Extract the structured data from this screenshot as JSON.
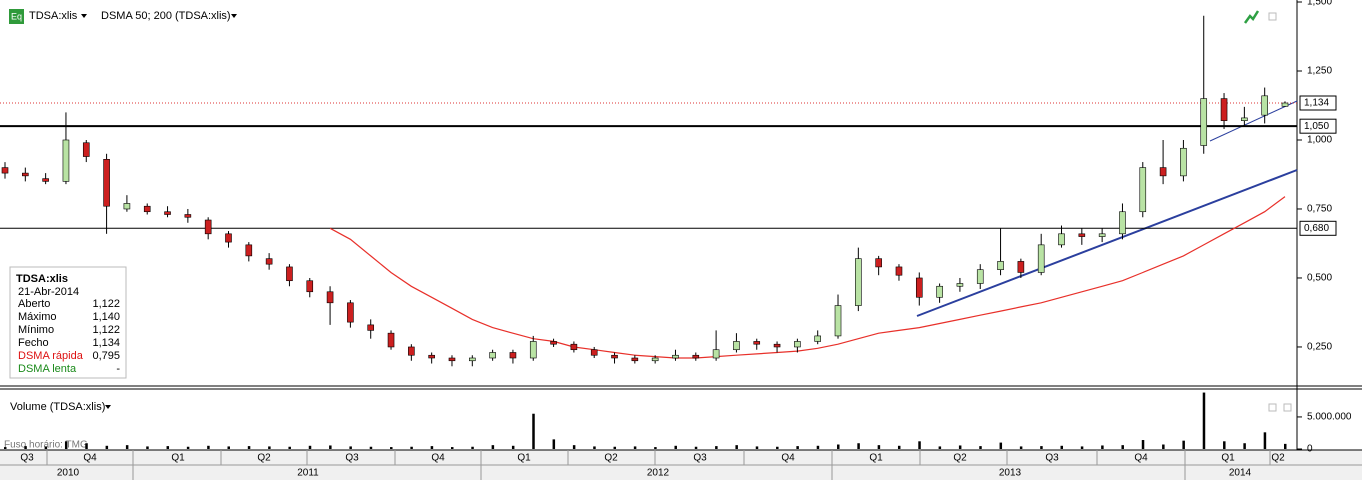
{
  "header": {
    "symbol": "TDSA:xlis",
    "indicator": "DSMA 50; 200 (TDSA:xlis)",
    "volume_title": "Volume (TDSA:xlis)",
    "timezone": "Fuso horário: TMG"
  },
  "info_box": {
    "title": "TDSA:xlis",
    "date": "21-Abr-2014",
    "rows": [
      {
        "label": "Aberto",
        "value": "1,122"
      },
      {
        "label": "Máximo",
        "value": "1,140"
      },
      {
        "label": "Mínimo",
        "value": "1,122"
      },
      {
        "label": "Fecho",
        "value": "1,134"
      },
      {
        "label": "DSMA rápida",
        "value": "0,795"
      },
      {
        "label": "DSMA lenta",
        "value": "-"
      }
    ]
  },
  "time_axis": {
    "quarters": [
      "Q3",
      "Q4",
      "Q1",
      "Q2",
      "Q3",
      "Q4",
      "Q1",
      "Q2",
      "Q3",
      "Q4",
      "Q1",
      "Q2",
      "Q3",
      "Q4",
      "Q1",
      "Q2"
    ],
    "years": [
      "2010",
      "2011",
      "2012",
      "2013",
      "2014"
    ]
  },
  "chart_data": [
    {
      "type": "candlestick",
      "categories": [
        null,
        null,
        null,
        null,
        null,
        null,
        null,
        null,
        null,
        null,
        null,
        null,
        null,
        null,
        null,
        null,
        null,
        null,
        null,
        null,
        null,
        null,
        null,
        null,
        null,
        null,
        null,
        null,
        null,
        null,
        null,
        null,
        null,
        null,
        null,
        null,
        null,
        null,
        null,
        null,
        null,
        null,
        null,
        null,
        null,
        null,
        null,
        null,
        null,
        null,
        null,
        null,
        null,
        null,
        null,
        null,
        null,
        null,
        null,
        null,
        null,
        null,
        null,
        null
      ],
      "open": [
        0.9,
        0.88,
        0.86,
        0.85,
        0.99,
        0.93,
        0.75,
        0.76,
        0.74,
        0.73,
        0.71,
        0.66,
        0.62,
        0.57,
        0.54,
        0.49,
        0.45,
        0.41,
        0.33,
        0.3,
        0.25,
        0.22,
        0.21,
        0.2,
        0.21,
        0.23,
        0.21,
        0.27,
        0.26,
        0.24,
        0.22,
        0.21,
        0.2,
        0.21,
        0.22,
        0.21,
        0.24,
        0.27,
        0.26,
        0.25,
        0.27,
        0.29,
        0.4,
        0.57,
        0.54,
        0.5,
        0.43,
        0.47,
        0.48,
        0.53,
        0.56,
        0.52,
        0.62,
        0.66,
        0.65,
        0.66,
        0.74,
        0.9,
        0.87,
        0.98,
        1.15,
        1.07,
        1.09,
        1.122
      ],
      "high": [
        0.92,
        0.9,
        0.88,
        1.1,
        1.0,
        0.95,
        0.8,
        0.77,
        0.76,
        0.75,
        0.72,
        0.67,
        0.63,
        0.59,
        0.55,
        0.5,
        0.47,
        0.42,
        0.35,
        0.31,
        0.26,
        0.23,
        0.22,
        0.22,
        0.24,
        0.24,
        0.29,
        0.28,
        0.27,
        0.25,
        0.23,
        0.22,
        0.22,
        0.24,
        0.23,
        0.31,
        0.3,
        0.28,
        0.27,
        0.28,
        0.31,
        0.44,
        0.61,
        0.58,
        0.55,
        0.52,
        0.48,
        0.5,
        0.55,
        0.68,
        0.57,
        0.66,
        0.69,
        0.68,
        0.68,
        0.77,
        0.92,
        1.0,
        1.0,
        1.45,
        1.17,
        1.12,
        1.19,
        1.14
      ],
      "low": [
        0.86,
        0.85,
        0.84,
        0.84,
        0.92,
        0.66,
        0.74,
        0.73,
        0.72,
        0.7,
        0.64,
        0.61,
        0.56,
        0.53,
        0.47,
        0.43,
        0.33,
        0.32,
        0.28,
        0.24,
        0.2,
        0.19,
        0.18,
        0.18,
        0.2,
        0.19,
        0.2,
        0.25,
        0.23,
        0.21,
        0.19,
        0.19,
        0.19,
        0.2,
        0.2,
        0.2,
        0.23,
        0.24,
        0.23,
        0.23,
        0.26,
        0.28,
        0.38,
        0.51,
        0.49,
        0.4,
        0.41,
        0.45,
        0.46,
        0.51,
        0.5,
        0.51,
        0.61,
        0.62,
        0.63,
        0.64,
        0.72,
        0.84,
        0.85,
        0.95,
        1.04,
        1.05,
        1.06,
        1.122
      ],
      "close": [
        0.88,
        0.87,
        0.85,
        1.0,
        0.94,
        0.76,
        0.77,
        0.74,
        0.73,
        0.72,
        0.66,
        0.63,
        0.58,
        0.55,
        0.49,
        0.45,
        0.41,
        0.34,
        0.31,
        0.25,
        0.22,
        0.21,
        0.2,
        0.21,
        0.23,
        0.21,
        0.27,
        0.26,
        0.24,
        0.22,
        0.21,
        0.2,
        0.21,
        0.22,
        0.21,
        0.24,
        0.27,
        0.26,
        0.25,
        0.27,
        0.29,
        0.4,
        0.57,
        0.54,
        0.51,
        0.43,
        0.47,
        0.48,
        0.53,
        0.56,
        0.52,
        0.62,
        0.66,
        0.65,
        0.66,
        0.74,
        0.9,
        0.87,
        0.97,
        1.15,
        1.07,
        1.08,
        1.16,
        1.134
      ],
      "up_color": "#b9e3a4",
      "down_color": "#cc1f1f",
      "series": [
        {
          "name": "DSMA rápida",
          "color": "#e8302a",
          "values": [
            null,
            null,
            null,
            null,
            null,
            null,
            null,
            null,
            null,
            null,
            null,
            null,
            null,
            null,
            null,
            null,
            0.68,
            0.64,
            0.58,
            0.52,
            0.47,
            0.43,
            0.39,
            0.35,
            0.32,
            0.3,
            0.28,
            0.27,
            0.25,
            0.24,
            0.23,
            0.22,
            0.215,
            0.21,
            0.21,
            0.215,
            0.22,
            0.225,
            0.23,
            0.235,
            0.245,
            0.26,
            0.28,
            0.3,
            0.31,
            0.32,
            0.335,
            0.35,
            0.365,
            0.38,
            0.395,
            0.41,
            0.43,
            0.45,
            0.47,
            0.49,
            0.52,
            0.55,
            0.58,
            0.62,
            0.66,
            0.7,
            0.74,
            0.795
          ]
        }
      ],
      "levels": [
        {
          "value": 1.05,
          "label": "1,050"
        },
        {
          "value": 0.68,
          "label": "0,680"
        }
      ],
      "last_price": {
        "value": 1.134,
        "label": "1,134"
      },
      "ylim": [
        0.11,
        1.5
      ],
      "yticks": [
        {
          "value": 0.25,
          "label": "0,250"
        },
        {
          "value": 0.5,
          "label": "0,500"
        },
        {
          "value": 0.75,
          "label": "0,750"
        },
        {
          "value": 1.0,
          "label": "1,000"
        },
        {
          "value": 1.25,
          "label": "1,250"
        },
        {
          "value": 1.5,
          "label": "1,500"
        }
      ]
    },
    {
      "type": "bar",
      "color": "#000000",
      "values": [
        300000,
        450000,
        400000,
        1200000,
        900000,
        500000,
        600000,
        400000,
        450000,
        350000,
        500000,
        400000,
        450000,
        400000,
        350000,
        500000,
        550000,
        400000,
        350000,
        300000,
        350000,
        450000,
        300000,
        350000,
        600000,
        500000,
        5500000,
        1500000,
        600000,
        400000,
        350000,
        400000,
        300000,
        500000,
        350000,
        450000,
        600000,
        400000,
        350000,
        450000,
        500000,
        700000,
        900000,
        600000,
        500000,
        1200000,
        400000,
        550000,
        450000,
        1000000,
        400000,
        450000,
        500000,
        400000,
        550000,
        600000,
        1400000,
        700000,
        1300000,
        8800000,
        1200000,
        900000,
        2600000,
        800000
      ],
      "ylim": [
        0,
        9200000
      ],
      "yticks": [
        0,
        {
          "value": 5000000,
          "label": "5.000.000"
        }
      ]
    }
  ]
}
